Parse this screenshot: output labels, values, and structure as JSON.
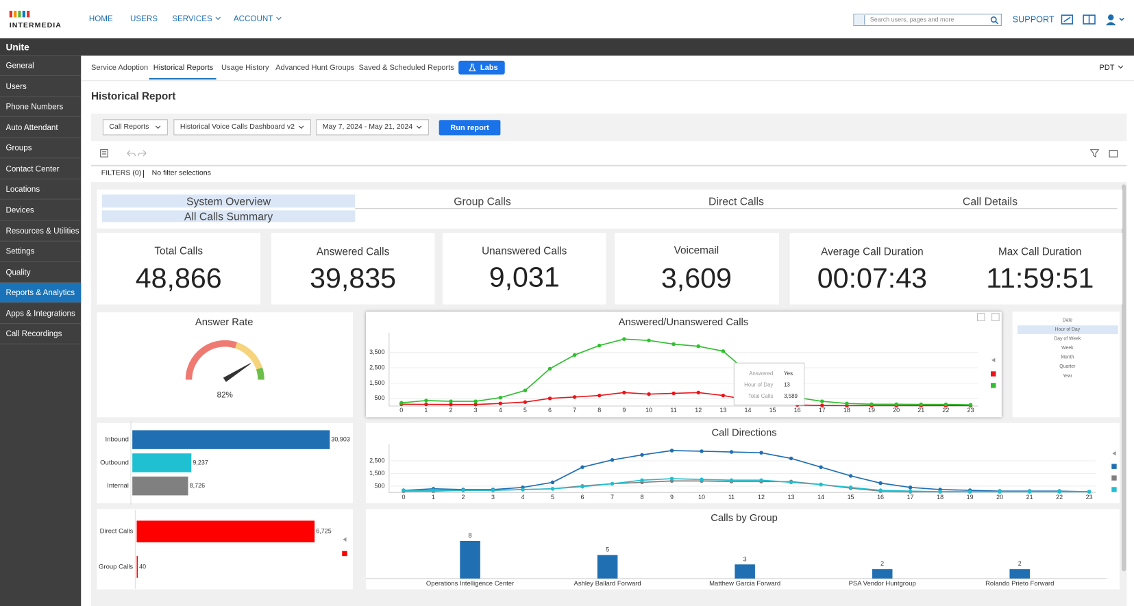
{
  "header": {
    "logo": "INTERMEDIA",
    "nav": [
      "HOME",
      "USERS",
      "SERVICES",
      "ACCOUNT"
    ],
    "search_placeholder": "Search users, pages and more",
    "support": "SUPPORT"
  },
  "app_bar": {
    "title": "Unite"
  },
  "sidebar": {
    "items": [
      "General",
      "Users",
      "Phone Numbers",
      "Auto Attendant",
      "Groups",
      "Contact Center",
      "Locations",
      "Devices",
      "Resources & Utilities",
      "Settings",
      "Quality",
      "Reports & Analytics",
      "Apps & Integrations",
      "Call Recordings"
    ]
  },
  "tabs": {
    "items": [
      "Service Adoption",
      "Historical Reports",
      "Usage History",
      "Advanced Hunt Groups",
      "Saved & Scheduled Reports"
    ],
    "labs": "Labs",
    "timezone": "PDT"
  },
  "report": {
    "title": "Historical Report",
    "selectors": [
      "Call Reports",
      "Historical Voice Calls Dashboard v2",
      "May 7, 2024 - May 21, 2024"
    ],
    "run": "Run report",
    "filters_label": "FILTERS (0)",
    "filters_value": "No filter selections"
  },
  "dashboard_tabs": {
    "items": [
      "System Overview",
      "Group Calls",
      "Direct Calls",
      "Call Details"
    ],
    "subitem": "All Calls Summary"
  },
  "kpis": [
    {
      "label": "Total Calls",
      "value": "48,866"
    },
    {
      "label": "Answered Calls",
      "value": "39,835"
    },
    {
      "label": "Unanswered Calls",
      "value": "9,031"
    },
    {
      "label": "Voicemail",
      "value": "3,609"
    },
    {
      "label": "Average Call Duration",
      "value": "00:07:43"
    },
    {
      "label": "Max Call Duration",
      "value": "11:59:51"
    }
  ],
  "chart_data": [
    {
      "type": "gauge",
      "title": "Answer Rate",
      "values": [
        82
      ],
      "value_labels": [
        "82%"
      ],
      "ylim": [
        0,
        100
      ]
    },
    {
      "type": "line",
      "title": "Answered/Unanswered Calls",
      "categories": [
        0,
        1,
        2,
        3,
        4,
        5,
        6,
        7,
        8,
        9,
        10,
        11,
        12,
        13,
        14,
        15,
        16,
        17,
        18,
        19,
        20,
        21,
        22,
        23
      ],
      "series": [
        {
          "color": "#e8161b",
          "values": [
            120,
            110,
            100,
            100,
            170,
            260,
            500,
            590,
            690,
            880,
            780,
            830,
            880,
            690,
            400,
            210,
            70,
            40,
            30,
            30,
            30,
            30,
            30,
            30
          ]
        },
        {
          "color": "#2fc02f",
          "values": [
            210,
            360,
            310,
            310,
            550,
            1020,
            2440,
            3340,
            3960,
            4380,
            4290,
            4050,
            3910,
            3589,
            2200,
            1000,
            550,
            310,
            170,
            120,
            120,
            110,
            110,
            80
          ]
        }
      ],
      "ylim": [
        0,
        4800
      ],
      "yticks": [
        500,
        {
          "value": 1500,
          "label": "1,500"
        },
        {
          "value": 2500,
          "label": "2,500"
        },
        {
          "value": 3500,
          "label": "3,500"
        }
      ],
      "grid": true,
      "tooltip": {
        "rows": [
          [
            "Answered",
            "Yes"
          ],
          [
            "Hour of Day",
            "13"
          ],
          [
            "Total Calls",
            "3,589"
          ]
        ]
      },
      "granularity": [
        "Date",
        "Hour of Day",
        "Day of Week",
        "Week",
        "Month",
        "Quarter",
        "Year"
      ]
    },
    {
      "type": "hbar",
      "categories": [
        "Inbound",
        "Outbound",
        "Internal"
      ],
      "values": [
        30903,
        9237,
        8726
      ],
      "value_labels": [
        "30,903",
        "9,237",
        "8,726"
      ],
      "colors": [
        "#1f6fb2",
        "#1ec0d2",
        "#808080"
      ]
    },
    {
      "type": "line",
      "title": "Call Directions",
      "categories": [
        0,
        1,
        2,
        3,
        4,
        5,
        6,
        7,
        8,
        9,
        10,
        11,
        12,
        13,
        14,
        15,
        16,
        17,
        18,
        19,
        20,
        21,
        22,
        23
      ],
      "series": [
        {
          "color": "#1f6fb2",
          "values": [
            170,
            290,
            230,
            230,
            400,
            800,
            2000,
            2570,
            2970,
            3310,
            3260,
            3200,
            3140,
            2690,
            2000,
            1310,
            740,
            400,
            230,
            170,
            110,
            110,
            110,
            60
          ]
        },
        {
          "color": "#808080",
          "values": [
            110,
            110,
            170,
            170,
            230,
            290,
            510,
            690,
            800,
            910,
            910,
            860,
            860,
            860,
            630,
            340,
            110,
            60,
            60,
            60,
            60,
            60,
            60,
            60
          ]
        },
        {
          "color": "#1fbfd0",
          "values": [
            170,
            170,
            170,
            170,
            230,
            290,
            460,
            690,
            970,
            1090,
            1030,
            970,
            970,
            800,
            630,
            400,
            170,
            110,
            60,
            60,
            60,
            60,
            60,
            60
          ]
        }
      ],
      "ylim": [
        0,
        3800
      ],
      "yticks": [
        500,
        {
          "value": 1500,
          "label": "1,500"
        },
        {
          "value": 2500,
          "label": "2,500"
        }
      ],
      "grid": true
    },
    {
      "type": "hbar",
      "categories": [
        "Direct Calls",
        "Group Calls"
      ],
      "values": [
        6725,
        40
      ],
      "value_labels": [
        "6,725",
        "40"
      ],
      "color": "#ff0000"
    },
    {
      "type": "bar",
      "title": "Calls by Group",
      "categories": [
        "Operations Intelligence Center",
        "Ashley Ballard Forward",
        "Matthew Garcia Forward",
        "PSA Vendor Huntgroup",
        "Rolando Prieto Forward"
      ],
      "values": [
        8,
        5,
        3,
        2,
        2
      ],
      "color": "#1f6fb2"
    }
  ]
}
